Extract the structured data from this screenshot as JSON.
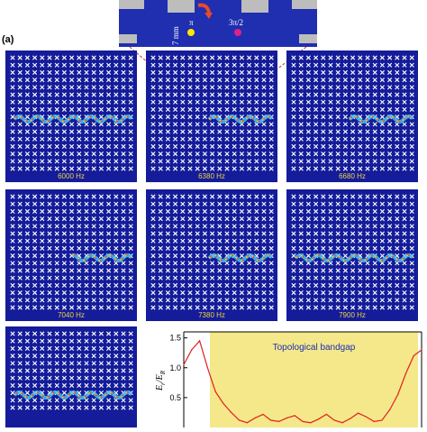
{
  "inset": {
    "length_label": "7 mm",
    "phase1": "π",
    "phase2": "3π/2",
    "colors": {
      "bg": "#1f2fb0",
      "dot1": "#ffe600",
      "dot2": "#e0208a",
      "arrow": "#e84a2a"
    }
  },
  "panel_label": "(a)",
  "panels": [
    {
      "freq": "6000 Hz"
    },
    {
      "freq": "6380 Hz"
    },
    {
      "freq": "6680 Hz"
    },
    {
      "freq": "7040 Hz"
    },
    {
      "freq": "7380 Hz"
    },
    {
      "freq": "7900 Hz"
    },
    {
      "freq": ""
    }
  ],
  "chart_data": {
    "type": "line",
    "ylabel": "E_r/E_R",
    "ylabel_main": "E",
    "ylabel_sub1": "r",
    "ylabel_sep": "/E",
    "ylabel_sub2": "R",
    "yticks": [
      "1.5",
      "1.0",
      "0.5"
    ],
    "ylim": [
      0,
      1.6
    ],
    "annotation": "Topological bandgap",
    "band": {
      "color": "#f5e88a"
    },
    "series": [
      {
        "color": "#e02020",
        "x": [
          0,
          1,
          2,
          3,
          4,
          5,
          6,
          7,
          8,
          9,
          10,
          11,
          12,
          13,
          14,
          15,
          16,
          17,
          18,
          19,
          20,
          21,
          22,
          23,
          24,
          25,
          26,
          27,
          28,
          29,
          30
        ],
        "y": [
          1.05,
          1.3,
          1.45,
          1.0,
          0.6,
          0.4,
          0.25,
          0.12,
          0.08,
          0.16,
          0.22,
          0.12,
          0.1,
          0.16,
          0.2,
          0.1,
          0.08,
          0.14,
          0.22,
          0.12,
          0.08,
          0.15,
          0.24,
          0.18,
          0.1,
          0.12,
          0.3,
          0.55,
          0.9,
          1.2,
          1.3
        ]
      }
    ]
  }
}
